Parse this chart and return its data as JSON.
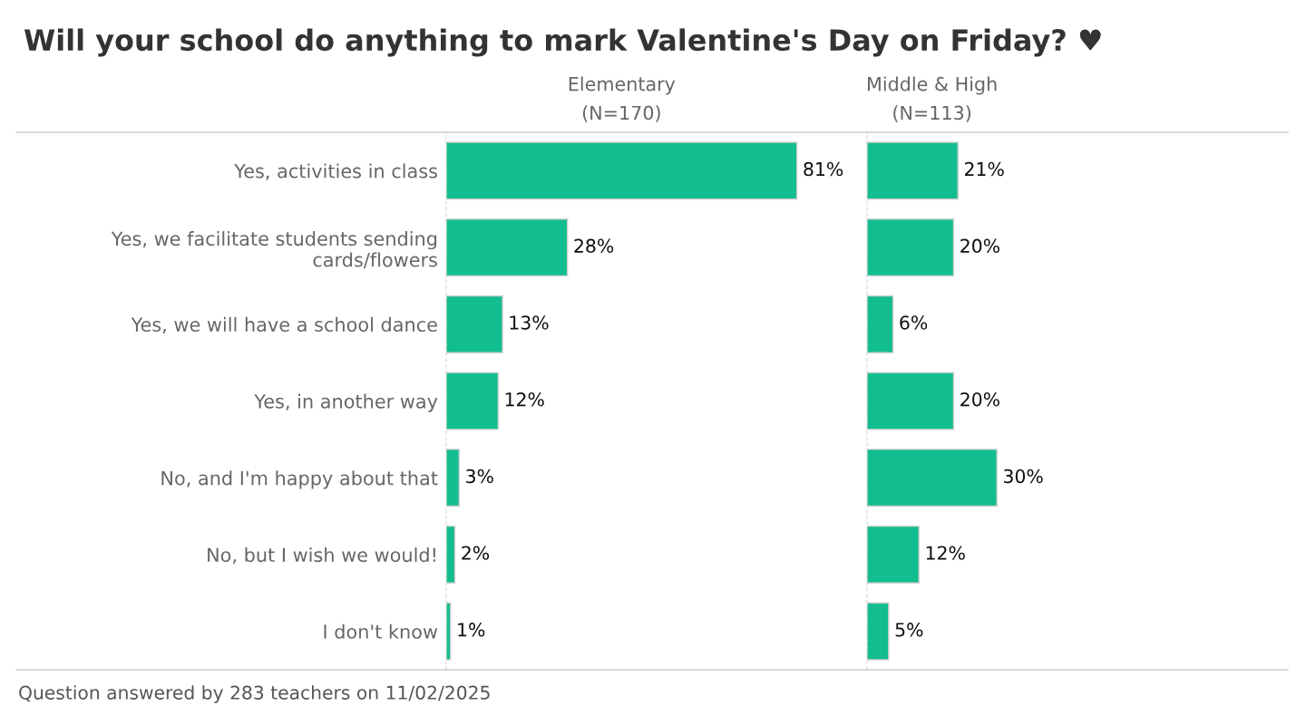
{
  "chart_data": [
    {
      "type": "bar",
      "orientation": "horizontal",
      "title": "Will your school do anything to mark Valentine's Day on Friday? ♥",
      "subtitle": "Elementary\n(N=170)",
      "categories": [
        "Yes, activities in class",
        "Yes, we facilitate students sending\ncards/flowers",
        "Yes, we will have a school dance",
        "Yes, in another way",
        "No, and I'm happy about that",
        "No, but I wish we would!",
        "I don't know"
      ],
      "values": [
        81,
        28,
        13,
        12,
        3,
        2,
        1
      ],
      "value_labels": [
        "81%",
        "28%",
        "13%",
        "12%",
        "3%",
        "2%",
        "1%"
      ],
      "color": "#12bd8f",
      "tick_labels": "y",
      "annotations": [
        "Question answered by 283 teachers on 11/02/2025"
      ]
    },
    {
      "type": "bar",
      "orientation": "horizontal",
      "title": "Middle & High\n(N=113)",
      "categories": [
        null,
        null,
        null,
        null,
        null,
        null,
        null
      ],
      "values": [
        21,
        20,
        6,
        20,
        30,
        12,
        5
      ],
      "value_labels": [
        "21%",
        "20%",
        "6%",
        "20%",
        "30%",
        "12%",
        "5%"
      ],
      "color": "#12bd8f",
      "tick_labels": false
    }
  ]
}
